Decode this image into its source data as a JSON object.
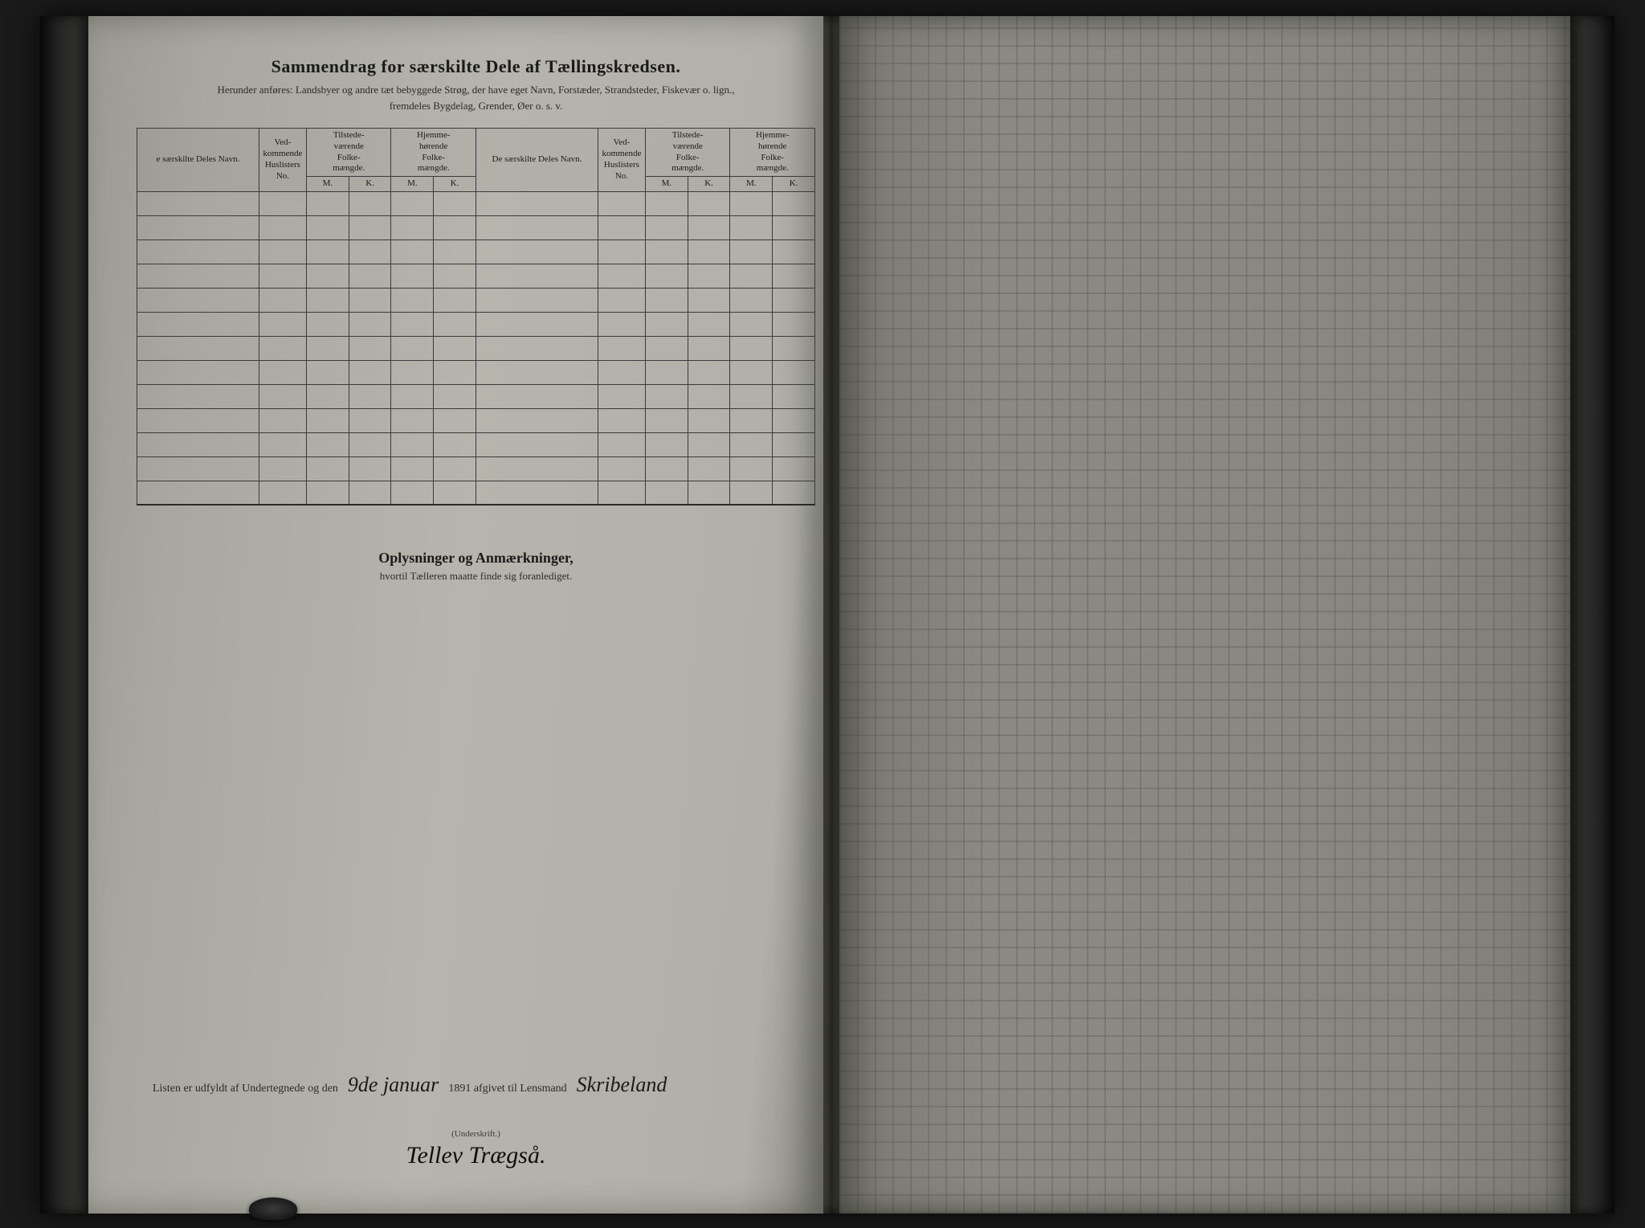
{
  "header": {
    "title": "Sammendrag for særskilte Dele af Tællingskredsen.",
    "subtitle_line1": "Herunder anføres: Landsbyer og andre tæt bebyggede Strøg, der have eget Navn, Forstæder, Strandsteder, Fiskevær o. lign.,",
    "subtitle_line2": "fremdeles Bygdelag, Grender, Øer o. s. v."
  },
  "table": {
    "columns": {
      "name": "De særskilte Deles Navn.",
      "name_partial": "e særskilte Deles Navn.",
      "vedkommende": "Ved-\nkommende\nHuslisters\nNo.",
      "tilstede": "Tilstede-\nværende\nFolke-\nmængde.",
      "hjemme": "Hjemme-\nhørende\nFolke-\nmængde.",
      "m": "M.",
      "k": "K."
    },
    "row_count": 13,
    "colors": {
      "border": "#3a3a3a",
      "text": "#1a1a1a"
    }
  },
  "mid": {
    "title": "Oplysninger og Anmærkninger,",
    "subtitle": "hvortil Tælleren maatte finde sig foranlediget."
  },
  "footer": {
    "prefix": "Listen er udfyldt af Undertegnede og den",
    "date_hand": "9de januar",
    "year_text": "1891 afgivet til Lensmand",
    "lensmand_hand": "Skribeland",
    "sig_label": "(Underskrift.)",
    "signature": "Tellev Trægså."
  },
  "layout": {
    "page_bg": "#b0b0a8",
    "right_page_bg": "#888880",
    "dark_bg": "#1a1a1a"
  }
}
